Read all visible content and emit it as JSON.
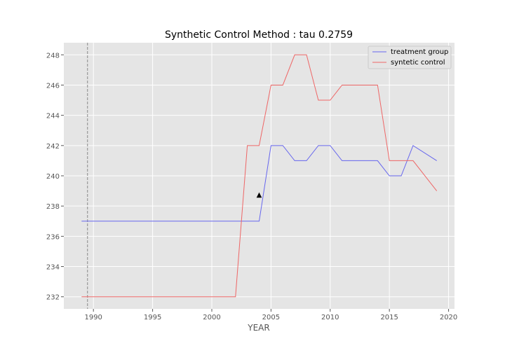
{
  "chart_data": {
    "type": "line",
    "title": "Synthetic Control Method : tau 0.2759",
    "xlabel": "YEAR",
    "ylabel": "",
    "xlim": [
      1987.5,
      2020.5
    ],
    "ylim": [
      231.2,
      248.8
    ],
    "xticks": [
      1990,
      1995,
      2000,
      2005,
      2010,
      2015,
      2020
    ],
    "yticks": [
      232,
      234,
      236,
      238,
      240,
      242,
      244,
      246,
      248
    ],
    "grid": true,
    "legend_position": "top-right",
    "intervention_line_x": 1989.5,
    "marker": {
      "x": 2004,
      "y": 238.8,
      "symbol": "▲"
    },
    "series": [
      {
        "name": "treatment group",
        "color": "#6666ee",
        "x": [
          1989,
          2004,
          2005,
          2006,
          2007,
          2008,
          2009,
          2010,
          2011,
          2012,
          2013,
          2014,
          2015,
          2016,
          2017,
          2019
        ],
        "y": [
          237,
          237,
          242,
          242,
          241,
          241,
          242,
          242,
          241,
          241,
          241,
          241,
          240,
          240,
          242,
          241
        ]
      },
      {
        "name": "syntetic control",
        "color": "#ee6666",
        "x": [
          1989,
          2002,
          2003,
          2004,
          2005,
          2006,
          2007,
          2008,
          2009,
          2010,
          2011,
          2012,
          2013,
          2014,
          2015,
          2016,
          2017,
          2019
        ],
        "y": [
          232,
          232,
          242,
          242,
          246,
          246,
          248,
          248,
          245,
          245,
          246,
          246,
          246,
          246,
          241,
          241,
          241,
          239
        ]
      }
    ]
  }
}
